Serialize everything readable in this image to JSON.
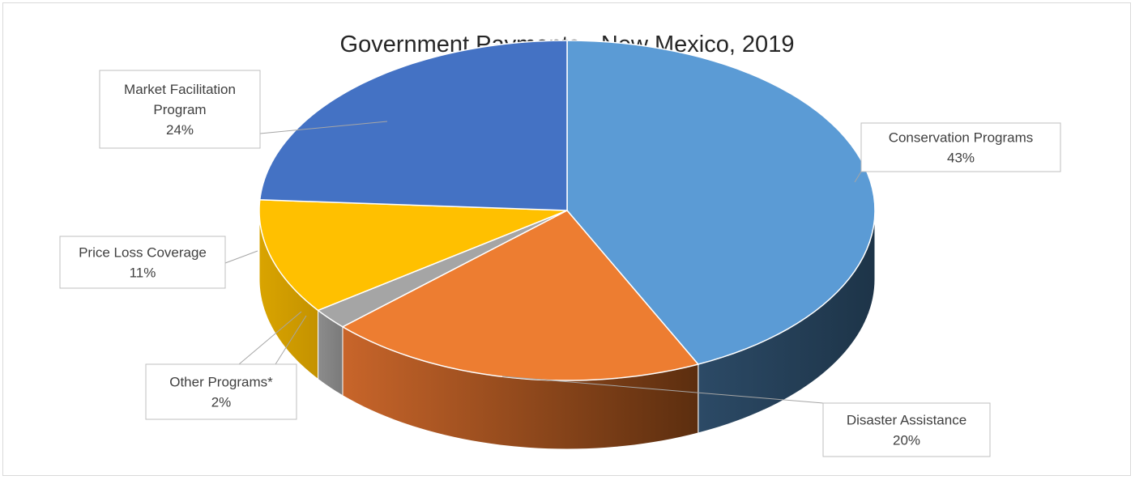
{
  "chart_data": {
    "type": "pie",
    "title": "Government Payments - New Mexico, 2019",
    "categories": [
      "Conservation Programs",
      "Disaster Assistance",
      "Other Programs*",
      "Price Loss Coverage",
      "Market Facilitation Program"
    ],
    "values": [
      43,
      20,
      2,
      11,
      24
    ],
    "data_labels": [
      "43%",
      "20%",
      "2%",
      "11%",
      "24%"
    ],
    "colors": [
      "#5b9bd5",
      "#ed7d31",
      "#a5a5a5",
      "#ffc000",
      "#4472c4"
    ],
    "style": "3d",
    "legend": "none"
  }
}
